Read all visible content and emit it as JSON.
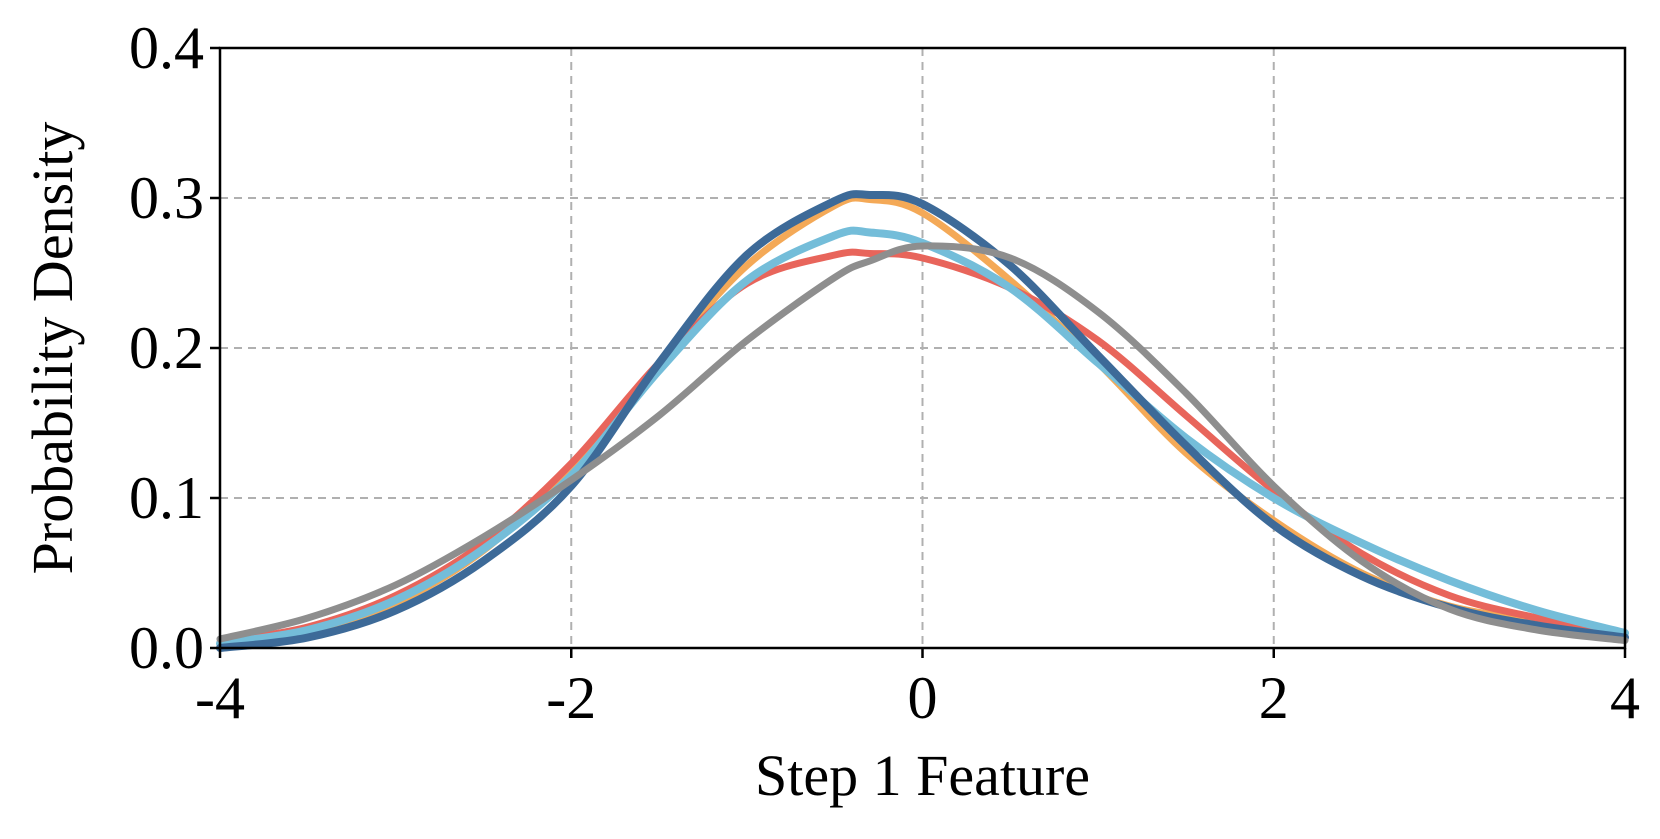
{
  "chart_data": {
    "type": "line",
    "title": "",
    "xlabel": "Step 1 Feature",
    "ylabel": "Probability Density",
    "xlim": [
      -4,
      4
    ],
    "ylim": [
      0,
      0.4
    ],
    "x_ticks": [
      -4,
      -2,
      0,
      2,
      4
    ],
    "x_tick_labels": [
      "-4",
      "-2",
      "0",
      "2",
      "4"
    ],
    "y_ticks": [
      0,
      0.1,
      0.2,
      0.3,
      0.4
    ],
    "y_tick_labels": [
      "0.0",
      "0.1",
      "0.2",
      "0.3",
      "0.4"
    ],
    "grid": true,
    "legend": "none",
    "x": [
      -4,
      -3.5,
      -3,
      -2.5,
      -2,
      -1.5,
      -1,
      -0.5,
      -0.3,
      0,
      0.5,
      1,
      1.5,
      2,
      2.5,
      3,
      3.5,
      4
    ],
    "series": [
      {
        "color": "#f4a957",
        "values": [
          0.001,
          0.01,
          0.03,
          0.065,
          0.12,
          0.19,
          0.255,
          0.295,
          0.299,
          0.29,
          0.245,
          0.19,
          0.13,
          0.085,
          0.05,
          0.028,
          0.018,
          0.008
        ]
      },
      {
        "color": "#e8655b",
        "values": [
          0.004,
          0.014,
          0.035,
          0.07,
          0.123,
          0.19,
          0.243,
          0.262,
          0.263,
          0.26,
          0.24,
          0.205,
          0.155,
          0.105,
          0.063,
          0.035,
          0.02,
          0.009
        ]
      },
      {
        "color": "#74bdd9",
        "values": [
          0.003,
          0.012,
          0.032,
          0.066,
          0.115,
          0.185,
          0.245,
          0.275,
          0.277,
          0.27,
          0.24,
          0.19,
          0.14,
          0.1,
          0.07,
          0.045,
          0.025,
          0.01
        ]
      },
      {
        "color": "#3d6a98",
        "values": [
          0.0,
          0.007,
          0.025,
          0.058,
          0.108,
          0.19,
          0.262,
          0.298,
          0.302,
          0.296,
          0.255,
          0.195,
          0.135,
          0.082,
          0.048,
          0.027,
          0.015,
          0.007
        ]
      },
      {
        "color": "#8e8e8e",
        "values": [
          0.006,
          0.02,
          0.042,
          0.074,
          0.112,
          0.155,
          0.205,
          0.247,
          0.258,
          0.268,
          0.26,
          0.224,
          0.17,
          0.108,
          0.058,
          0.026,
          0.012,
          0.005
        ]
      }
    ]
  }
}
